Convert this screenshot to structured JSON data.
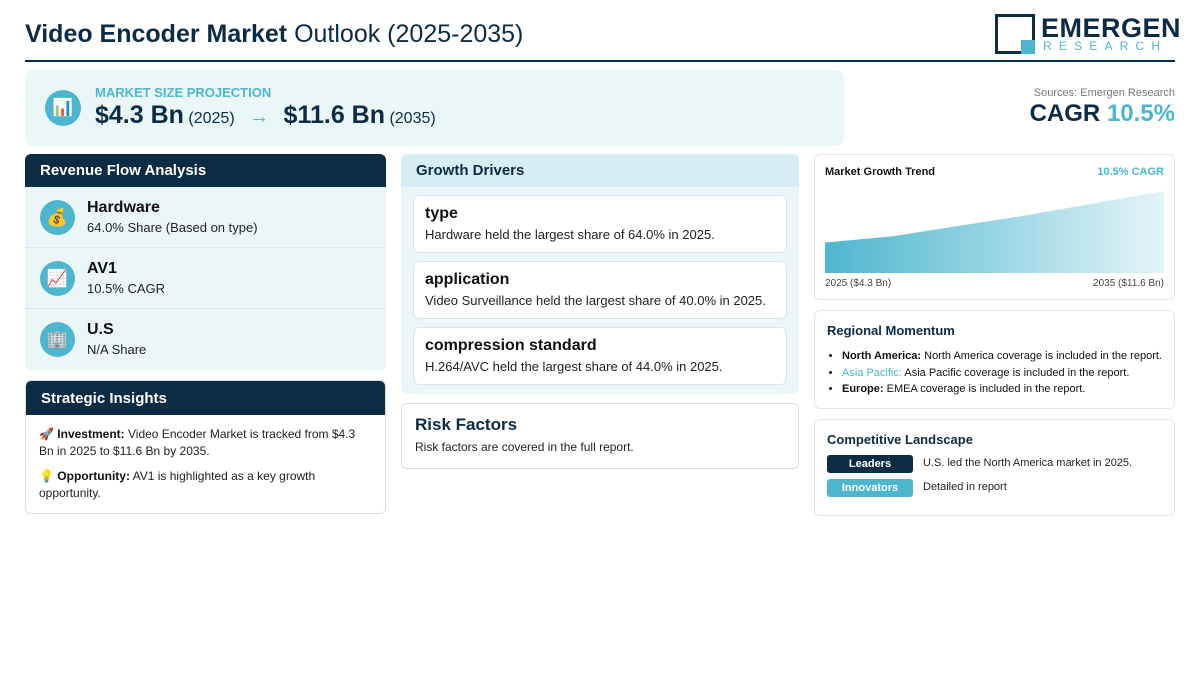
{
  "header": {
    "title_bold": "Video Encoder Market",
    "title_rest": "Outlook (2025-2035)",
    "logo_main": "EMERGEN",
    "logo_sub": "RESEARCH"
  },
  "projection": {
    "icon": "bar-chart-icon",
    "label": "MARKET SIZE PROJECTION",
    "start_value": "$4.3 Bn",
    "start_year": "(2025)",
    "arrow": "→",
    "end_value": "$11.6 Bn",
    "end_year": "(2035)"
  },
  "sources": "Sources: Emergen Research",
  "cagr": {
    "label": "CAGR",
    "value": "10.5%"
  },
  "revenue_flow": {
    "title": "Revenue Flow Analysis",
    "items": [
      {
        "icon": "money-bag-icon",
        "title": "Hardware",
        "sub": "64.0% Share (Based on type)"
      },
      {
        "icon": "trend-up-icon",
        "title": "AV1",
        "sub": "10.5% CAGR"
      },
      {
        "icon": "building-icon",
        "title": "U.S",
        "sub": "N/A Share"
      }
    ]
  },
  "strategic": {
    "title": "Strategic Insights",
    "investment_label": "Investment:",
    "investment_text": "Video Encoder Market is tracked from $4.3 Bn in 2025 to $11.6 Bn by 2035.",
    "opportunity_label": "Opportunity:",
    "opportunity_text": "AV1 is highlighted as a key growth opportunity."
  },
  "drivers": {
    "title": "Growth Drivers",
    "items": [
      {
        "title": "type",
        "sub": "Hardware held the largest share of 64.0% in 2025."
      },
      {
        "title": "application",
        "sub": "Video Surveillance held the largest share of 40.0% in 2025."
      },
      {
        "title": "compression standard",
        "sub": "H.264/AVC held the largest share of 44.0% in 2025."
      }
    ]
  },
  "risk": {
    "title": "Risk Factors",
    "sub": "Risk factors are covered in the full report."
  },
  "trend": {
    "title": "Market Growth Trend",
    "cagr_label": "10.5% CAGR",
    "left_label": "2025 ($4.3 Bn)",
    "right_label": "2035 ($11.6 Bn)",
    "colors": {
      "start": "#4db6cf",
      "end": "#e4f4f8"
    }
  },
  "chart_data": {
    "type": "area",
    "x": [
      2025,
      2027,
      2031,
      2035
    ],
    "values": [
      4.3,
      5.2,
      8.2,
      11.6
    ]
  },
  "region": {
    "title": "Regional Momentum",
    "items": [
      {
        "name": "North America:",
        "text": "North America coverage is included in the report."
      },
      {
        "name": "Asia Pacific:",
        "text": "Asia Pacific coverage is included in the report."
      },
      {
        "name": "Europe:",
        "text": "EMEA coverage is included in the report."
      }
    ]
  },
  "competitive": {
    "title": "Competitive Landscape",
    "leaders_label": "Leaders",
    "leaders_text": "U.S. led the North America market in 2025.",
    "innovators_label": "Innovators",
    "innovators_text": "Detailed in report"
  },
  "colors": {
    "navy": "#0c2b45",
    "accent": "#4db6cf",
    "panel_bg": "#ebf6f9"
  }
}
